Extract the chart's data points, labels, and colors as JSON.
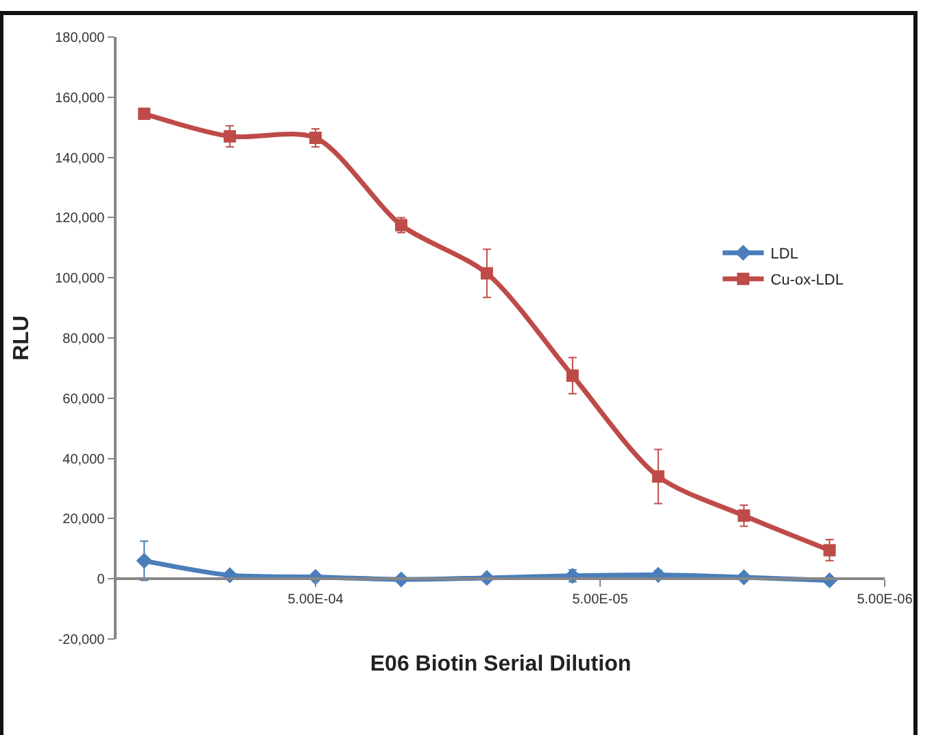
{
  "chart_data": {
    "type": "line",
    "xlabel": "E06 Biotin Serial Dilution",
    "ylabel": "RLU",
    "x": [
      0.002,
      0.001,
      0.0005,
      0.00025,
      0.000125,
      6.25e-05,
      3.125e-05,
      1.5625e-05,
      7.8125e-06
    ],
    "log": "x",
    "xlim": [
      0.0025,
      5e-06
    ],
    "xticks": [
      {
        "value": 0.0005,
        "label": "5.00E-04"
      },
      {
        "value": 5e-05,
        "label": "5.00E-05"
      },
      {
        "value": 5e-06,
        "label": "5.00E-06"
      }
    ],
    "ylim": [
      -20000,
      180000
    ],
    "yticks": [
      {
        "value": -20000,
        "label": "-20,000"
      },
      {
        "value": 0,
        "label": "0"
      },
      {
        "value": 20000,
        "label": "20,000"
      },
      {
        "value": 40000,
        "label": "40,000"
      },
      {
        "value": 60000,
        "label": "60,000"
      },
      {
        "value": 80000,
        "label": "80,000"
      },
      {
        "value": 100000,
        "label": "100,000"
      },
      {
        "value": 120000,
        "label": "120,000"
      },
      {
        "value": 140000,
        "label": "140,000"
      },
      {
        "value": 160000,
        "label": "160,000"
      },
      {
        "value": 180000,
        "label": "180,000"
      }
    ],
    "legend": "right",
    "series": [
      {
        "name": "LDL",
        "color": "#4a7ebb",
        "marker": "diamond",
        "values": [
          6000,
          1200,
          600,
          -200,
          300,
          1000,
          1300,
          500,
          -500
        ],
        "errors": [
          6500,
          null,
          null,
          null,
          null,
          2000,
          1500,
          null,
          null
        ]
      },
      {
        "name": "Cu-ox-LDL",
        "color": "#be4b48",
        "marker": "square",
        "values": [
          154500,
          147000,
          146500,
          117500,
          101500,
          67500,
          34000,
          21000,
          9500
        ],
        "errors": [
          null,
          3500,
          3000,
          2500,
          8000,
          6000,
          9000,
          3500,
          3500
        ]
      }
    ]
  }
}
